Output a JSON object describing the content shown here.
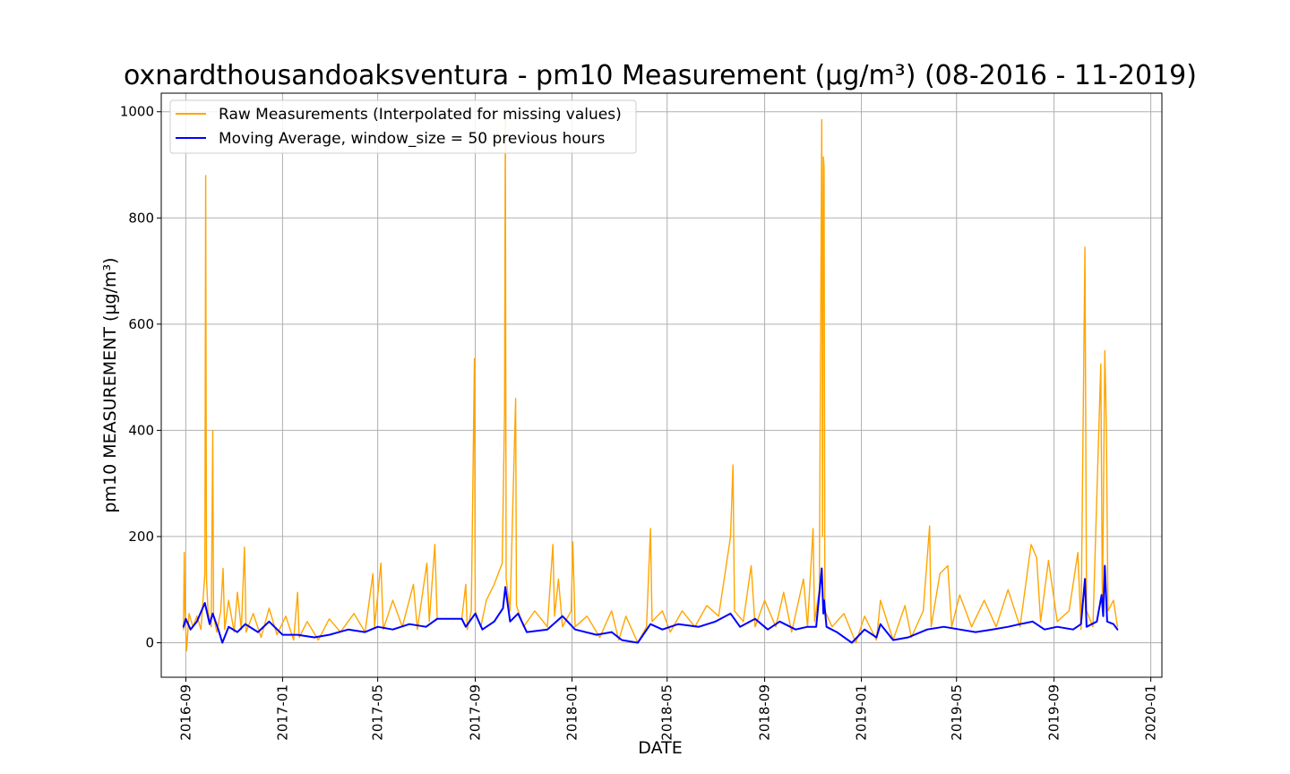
{
  "chart_data": {
    "type": "line",
    "title": "oxnardthousandoaksventura - pm10 Measurement (µg/m³) (08-2016 - 11-2019)",
    "xlabel": "DATE",
    "ylabel": "pm10 MEASUREMENT (µg/m³)",
    "xlim": [
      "2016-08-01",
      "2020-01-15"
    ],
    "ylim": [
      -65,
      1035
    ],
    "grid": true,
    "legend_position": "top-left",
    "x_ticks": [
      "2016-09",
      "2017-01",
      "2017-05",
      "2017-09",
      "2018-01",
      "2018-05",
      "2018-09",
      "2019-01",
      "2019-05",
      "2019-09",
      "2020-01"
    ],
    "y_ticks": [
      0,
      200,
      400,
      600,
      800,
      1000
    ],
    "colors": {
      "raw": "#ffa500",
      "moving_average": "#0000ff",
      "grid": "#b0b0b0"
    },
    "series": [
      {
        "name": "Raw Measurements (Interpolated for missing values)",
        "color": "#ffa500",
        "points": [
          [
            "2016-08-29",
            25
          ],
          [
            "2016-08-30",
            170
          ],
          [
            "2016-08-31",
            60
          ],
          [
            "2016-09-02",
            -15
          ],
          [
            "2016-09-05",
            55
          ],
          [
            "2016-09-10",
            30
          ],
          [
            "2016-09-15",
            50
          ],
          [
            "2016-09-20",
            25
          ],
          [
            "2016-09-25",
            130
          ],
          [
            "2016-09-26",
            880
          ],
          [
            "2016-09-27",
            120
          ],
          [
            "2016-09-29",
            60
          ],
          [
            "2016-10-03",
            30
          ],
          [
            "2016-10-05",
            400
          ],
          [
            "2016-10-06",
            50
          ],
          [
            "2016-10-10",
            20
          ],
          [
            "2016-10-15",
            60
          ],
          [
            "2016-10-18",
            140
          ],
          [
            "2016-10-20",
            25
          ],
          [
            "2016-10-25",
            80
          ],
          [
            "2016-11-01",
            20
          ],
          [
            "2016-11-05",
            95
          ],
          [
            "2016-11-10",
            25
          ],
          [
            "2016-11-14",
            180
          ],
          [
            "2016-11-16",
            20
          ],
          [
            "2016-11-25",
            55
          ],
          [
            "2016-12-05",
            10
          ],
          [
            "2016-12-15",
            65
          ],
          [
            "2016-12-25",
            15
          ],
          [
            "2017-01-05",
            50
          ],
          [
            "2017-01-15",
            5
          ],
          [
            "2017-01-20",
            95
          ],
          [
            "2017-01-22",
            10
          ],
          [
            "2017-02-01",
            40
          ],
          [
            "2017-02-15",
            5
          ],
          [
            "2017-03-01",
            45
          ],
          [
            "2017-03-15",
            20
          ],
          [
            "2017-04-01",
            55
          ],
          [
            "2017-04-15",
            20
          ],
          [
            "2017-04-25",
            130
          ],
          [
            "2017-04-27",
            30
          ],
          [
            "2017-05-05",
            150
          ],
          [
            "2017-05-08",
            25
          ],
          [
            "2017-05-20",
            80
          ],
          [
            "2017-06-01",
            30
          ],
          [
            "2017-06-15",
            110
          ],
          [
            "2017-06-20",
            25
          ],
          [
            "2017-07-02",
            150
          ],
          [
            "2017-07-05",
            40
          ],
          [
            "2017-07-12",
            185
          ],
          [
            "2017-07-15",
            45
          ],
          [
            "2017-07-25",
            45
          ],
          [
            "2017-08-15",
            45
          ],
          [
            "2017-08-20",
            110
          ],
          [
            "2017-08-22",
            25
          ],
          [
            "2017-08-27",
            60
          ],
          [
            "2017-08-31",
            535
          ],
          [
            "2017-09-01",
            60
          ],
          [
            "2017-09-08",
            30
          ],
          [
            "2017-09-15",
            80
          ],
          [
            "2017-09-25",
            110
          ],
          [
            "2017-10-05",
            150
          ],
          [
            "2017-10-08",
            430
          ],
          [
            "2017-10-09",
            990
          ],
          [
            "2017-10-10",
            120
          ],
          [
            "2017-10-15",
            60
          ],
          [
            "2017-10-22",
            460
          ],
          [
            "2017-10-23",
            70
          ],
          [
            "2017-11-01",
            30
          ],
          [
            "2017-11-15",
            60
          ],
          [
            "2017-12-01",
            30
          ],
          [
            "2017-12-08",
            185
          ],
          [
            "2017-12-10",
            50
          ],
          [
            "2017-12-15",
            120
          ],
          [
            "2017-12-20",
            30
          ],
          [
            "2017-12-31",
            60
          ],
          [
            "2018-01-02",
            190
          ],
          [
            "2018-01-05",
            30
          ],
          [
            "2018-01-20",
            50
          ],
          [
            "2018-02-05",
            10
          ],
          [
            "2018-02-20",
            60
          ],
          [
            "2018-03-01",
            5
          ],
          [
            "2018-03-10",
            50
          ],
          [
            "2018-03-25",
            0
          ],
          [
            "2018-04-05",
            30
          ],
          [
            "2018-04-10",
            215
          ],
          [
            "2018-04-12",
            40
          ],
          [
            "2018-04-25",
            60
          ],
          [
            "2018-05-05",
            20
          ],
          [
            "2018-05-20",
            60
          ],
          [
            "2018-06-05",
            30
          ],
          [
            "2018-06-20",
            70
          ],
          [
            "2018-07-05",
            50
          ],
          [
            "2018-07-20",
            200
          ],
          [
            "2018-07-23",
            335
          ],
          [
            "2018-07-25",
            60
          ],
          [
            "2018-08-05",
            40
          ],
          [
            "2018-08-15",
            145
          ],
          [
            "2018-08-20",
            30
          ],
          [
            "2018-09-01",
            80
          ],
          [
            "2018-09-15",
            30
          ],
          [
            "2018-09-25",
            95
          ],
          [
            "2018-10-05",
            20
          ],
          [
            "2018-10-20",
            120
          ],
          [
            "2018-10-25",
            30
          ],
          [
            "2018-11-01",
            215
          ],
          [
            "2018-11-03",
            40
          ],
          [
            "2018-11-09",
            100
          ],
          [
            "2018-11-12",
            985
          ],
          [
            "2018-11-13",
            200
          ],
          [
            "2018-11-14",
            915
          ],
          [
            "2018-11-15",
            895
          ],
          [
            "2018-11-16",
            60
          ],
          [
            "2018-11-25",
            30
          ],
          [
            "2018-12-10",
            55
          ],
          [
            "2018-12-25",
            0
          ],
          [
            "2019-01-05",
            50
          ],
          [
            "2019-01-20",
            5
          ],
          [
            "2019-01-25",
            80
          ],
          [
            "2019-02-10",
            5
          ],
          [
            "2019-02-25",
            70
          ],
          [
            "2019-03-05",
            10
          ],
          [
            "2019-03-20",
            60
          ],
          [
            "2019-03-28",
            220
          ],
          [
            "2019-03-30",
            30
          ],
          [
            "2019-04-10",
            130
          ],
          [
            "2019-04-20",
            145
          ],
          [
            "2019-04-25",
            30
          ],
          [
            "2019-05-05",
            90
          ],
          [
            "2019-05-20",
            30
          ],
          [
            "2019-06-05",
            80
          ],
          [
            "2019-06-20",
            30
          ],
          [
            "2019-07-05",
            100
          ],
          [
            "2019-07-20",
            30
          ],
          [
            "2019-08-03",
            185
          ],
          [
            "2019-08-10",
            160
          ],
          [
            "2019-08-15",
            40
          ],
          [
            "2019-08-25",
            155
          ],
          [
            "2019-09-05",
            40
          ],
          [
            "2019-09-20",
            60
          ],
          [
            "2019-10-01",
            170
          ],
          [
            "2019-10-05",
            25
          ],
          [
            "2019-10-10",
            745
          ],
          [
            "2019-10-12",
            60
          ],
          [
            "2019-10-20",
            30
          ],
          [
            "2019-10-30",
            525
          ],
          [
            "2019-11-01",
            60
          ],
          [
            "2019-11-04",
            550
          ],
          [
            "2019-11-06",
            410
          ],
          [
            "2019-11-08",
            60
          ],
          [
            "2019-11-15",
            80
          ],
          [
            "2019-11-20",
            30
          ]
        ]
      },
      {
        "name": "Moving Average, window_size = 50 previous hours",
        "color": "#0000ff",
        "points": [
          [
            "2016-08-29",
            30
          ],
          [
            "2016-09-01",
            45
          ],
          [
            "2016-09-07",
            25
          ],
          [
            "2016-09-15",
            40
          ],
          [
            "2016-09-25",
            75
          ],
          [
            "2016-10-01",
            35
          ],
          [
            "2016-10-05",
            55
          ],
          [
            "2016-10-12",
            25
          ],
          [
            "2016-10-17",
            0
          ],
          [
            "2016-10-25",
            30
          ],
          [
            "2016-11-05",
            20
          ],
          [
            "2016-11-15",
            35
          ],
          [
            "2016-12-01",
            20
          ],
          [
            "2016-12-15",
            40
          ],
          [
            "2017-01-01",
            15
          ],
          [
            "2017-01-20",
            15
          ],
          [
            "2017-02-10",
            10
          ],
          [
            "2017-03-01",
            15
          ],
          [
            "2017-03-25",
            25
          ],
          [
            "2017-04-15",
            20
          ],
          [
            "2017-05-01",
            30
          ],
          [
            "2017-05-20",
            25
          ],
          [
            "2017-06-10",
            35
          ],
          [
            "2017-07-01",
            30
          ],
          [
            "2017-07-15",
            45
          ],
          [
            "2017-08-15",
            45
          ],
          [
            "2017-08-20",
            30
          ],
          [
            "2017-09-01",
            55
          ],
          [
            "2017-09-10",
            25
          ],
          [
            "2017-09-25",
            40
          ],
          [
            "2017-10-06",
            65
          ],
          [
            "2017-10-09",
            105
          ],
          [
            "2017-10-15",
            40
          ],
          [
            "2017-10-25",
            55
          ],
          [
            "2017-11-05",
            20
          ],
          [
            "2017-12-01",
            25
          ],
          [
            "2017-12-20",
            50
          ],
          [
            "2018-01-05",
            25
          ],
          [
            "2018-02-01",
            15
          ],
          [
            "2018-02-20",
            20
          ],
          [
            "2018-03-05",
            5
          ],
          [
            "2018-03-25",
            0
          ],
          [
            "2018-04-10",
            35
          ],
          [
            "2018-04-25",
            25
          ],
          [
            "2018-05-15",
            35
          ],
          [
            "2018-06-10",
            30
          ],
          [
            "2018-07-01",
            40
          ],
          [
            "2018-07-20",
            55
          ],
          [
            "2018-08-01",
            30
          ],
          [
            "2018-08-20",
            45
          ],
          [
            "2018-09-05",
            25
          ],
          [
            "2018-09-20",
            40
          ],
          [
            "2018-10-10",
            25
          ],
          [
            "2018-10-25",
            30
          ],
          [
            "2018-11-05",
            30
          ],
          [
            "2018-11-12",
            140
          ],
          [
            "2018-11-14",
            55
          ],
          [
            "2018-11-15",
            80
          ],
          [
            "2018-11-18",
            30
          ],
          [
            "2018-12-01",
            20
          ],
          [
            "2018-12-20",
            0
          ],
          [
            "2019-01-05",
            25
          ],
          [
            "2019-01-20",
            10
          ],
          [
            "2019-01-25",
            35
          ],
          [
            "2019-02-10",
            5
          ],
          [
            "2019-03-01",
            10
          ],
          [
            "2019-03-25",
            25
          ],
          [
            "2019-04-15",
            30
          ],
          [
            "2019-05-05",
            25
          ],
          [
            "2019-05-25",
            20
          ],
          [
            "2019-06-15",
            25
          ],
          [
            "2019-07-05",
            30
          ],
          [
            "2019-07-20",
            35
          ],
          [
            "2019-08-05",
            40
          ],
          [
            "2019-08-20",
            25
          ],
          [
            "2019-09-05",
            30
          ],
          [
            "2019-09-25",
            25
          ],
          [
            "2019-10-05",
            35
          ],
          [
            "2019-10-10",
            120
          ],
          [
            "2019-10-12",
            30
          ],
          [
            "2019-10-25",
            40
          ],
          [
            "2019-10-31",
            90
          ],
          [
            "2019-11-02",
            50
          ],
          [
            "2019-11-04",
            145
          ],
          [
            "2019-11-07",
            40
          ],
          [
            "2019-11-15",
            35
          ],
          [
            "2019-11-20",
            25
          ]
        ]
      }
    ]
  }
}
